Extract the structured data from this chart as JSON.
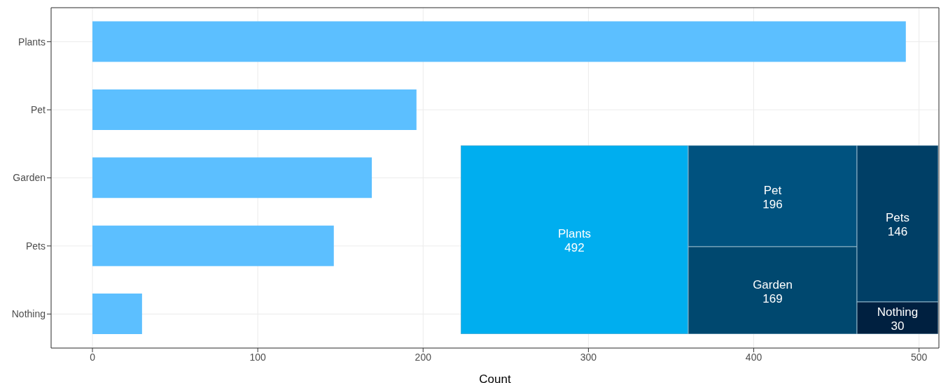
{
  "chart_data": [
    {
      "type": "bar",
      "orientation": "horizontal",
      "categories": [
        "Plants",
        "Pet",
        "Garden",
        "Pets",
        "Nothing"
      ],
      "values": [
        492,
        196,
        169,
        146,
        30
      ],
      "color": "#5cbfff",
      "xlabel": "Count",
      "xlim": [
        -25,
        512
      ],
      "xticks": [
        0,
        100,
        200,
        300,
        400,
        500
      ],
      "grid": true
    },
    {
      "type": "other",
      "data_labels": true,
      "categories": [
        "Plants",
        "Pet",
        "Garden",
        "Pets",
        "Nothing"
      ],
      "values": [
        492,
        196,
        169,
        146,
        30
      ],
      "colors": [
        "#00aeef",
        "#00527f",
        "#00486f",
        "#003f66",
        "#002040"
      ]
    }
  ]
}
